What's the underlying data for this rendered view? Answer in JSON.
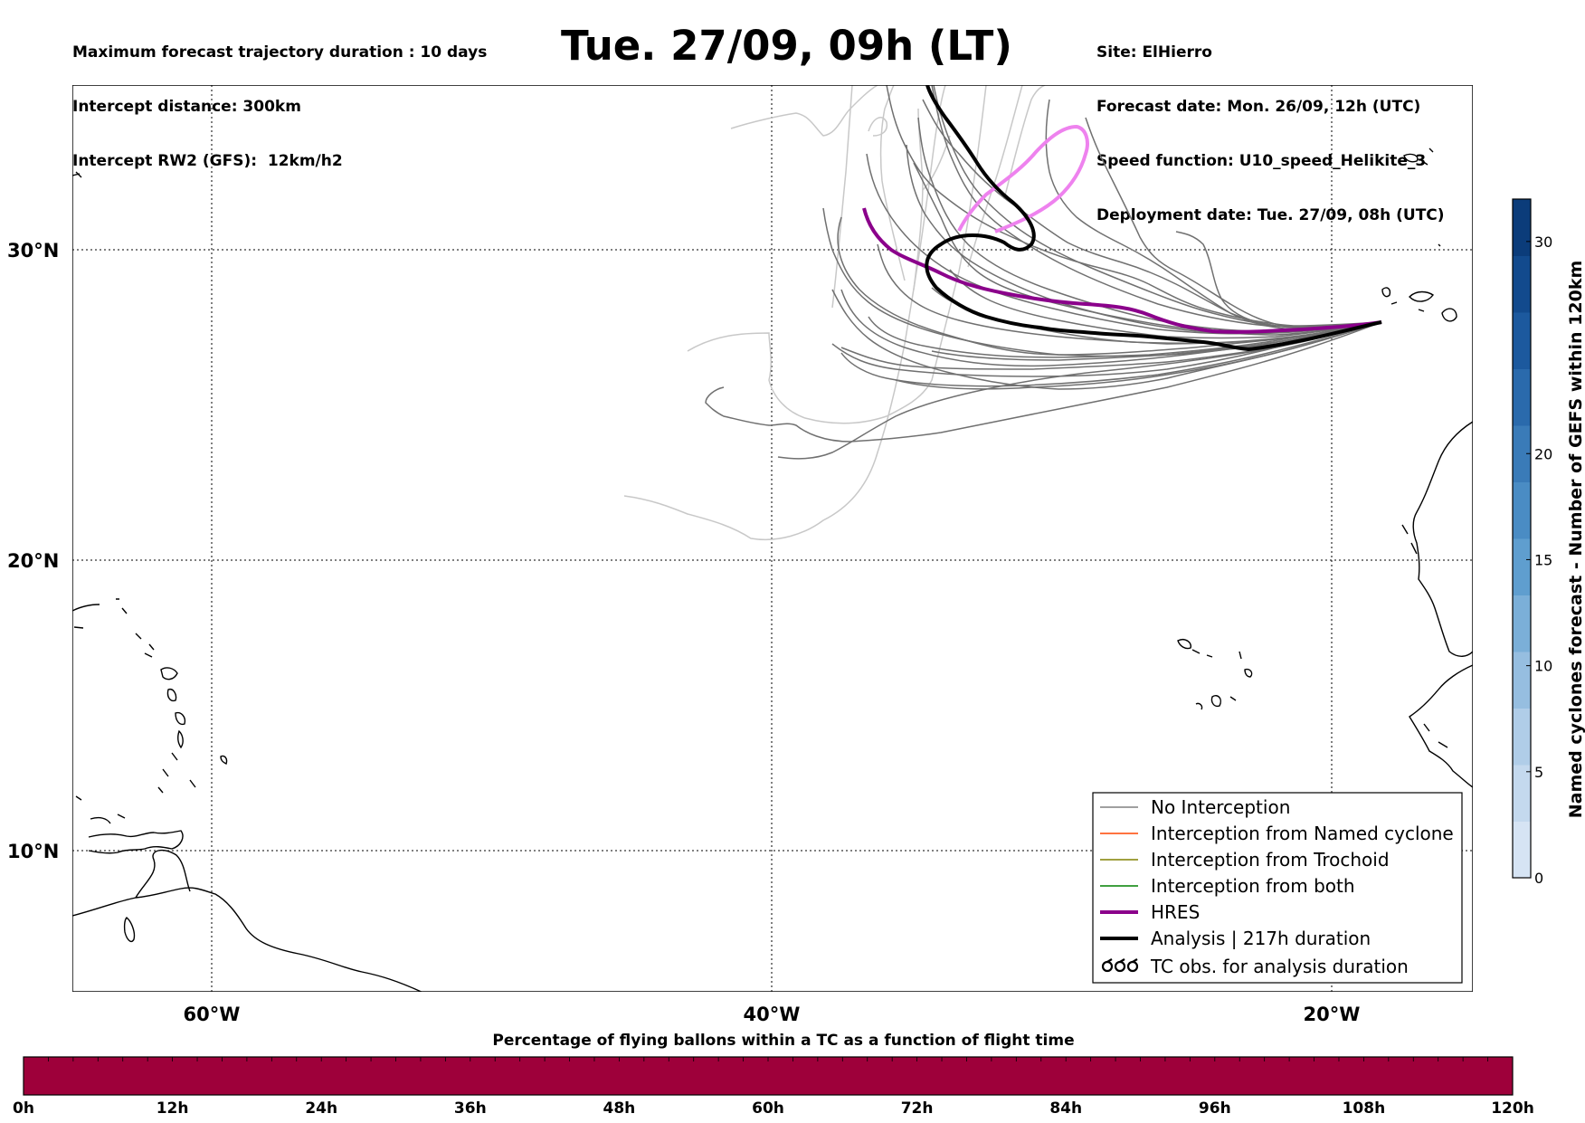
{
  "header": {
    "left_lines": [
      "Maximum forecast trajectory duration : 10 days",
      "Intercept distance: 300km",
      "Intercept RW2 (GFS):  12km/h2"
    ],
    "title": "Tue. 27/09, 09h (LT)",
    "right_lines": [
      "Site: ElHierro",
      "Forecast date: Mon. 26/09, 12h (UTC)",
      "Speed function: U10_speed_Helikite_3",
      "Deployment date: Tue. 27/09, 08h (UTC)"
    ]
  },
  "map": {
    "lon_range": [
      -65,
      -15
    ],
    "lat_range": [
      5.4,
      34.8
    ],
    "lat_labels": [
      "30°N",
      "20°N",
      "10°N"
    ],
    "lon_labels": [
      "60°W",
      "40°W",
      "20°W"
    ],
    "grid": "dotted"
  },
  "legend": {
    "placement": "bottom-right",
    "items": [
      {
        "label": "No Interception",
        "color": "#808080",
        "style": "thin"
      },
      {
        "label": "Interception from Named cyclone",
        "color": "#ff4500",
        "style": "thin"
      },
      {
        "label": "Interception from Trochoid",
        "color": "#808000",
        "style": "thin"
      },
      {
        "label": "Interception from both",
        "color": "#008000",
        "style": "thin"
      },
      {
        "label": "HRES",
        "color": "#8b008b",
        "style": "thick"
      },
      {
        "label": "Analysis | 217h duration",
        "color": "#000000",
        "style": "thick"
      },
      {
        "label": "TC obs. for analysis duration",
        "color": "#000000",
        "style": "symbol"
      }
    ]
  },
  "colorbar_right": {
    "title": "Named cyclones forecast - Number of GEFS within 120km",
    "ticks": [
      "0",
      "5",
      "10",
      "15",
      "20",
      "30"
    ],
    "colors": [
      "#d6e4f4",
      "#c4d9ee",
      "#b0cde8",
      "#96bee0",
      "#7bafd8",
      "#5f9ecf",
      "#4a8cc4",
      "#3a7bb8",
      "#2a6aac",
      "#1c599e",
      "#124a8d",
      "#0b3c7a"
    ]
  },
  "colorbar_bottom": {
    "title": "Percentage of flying ballons within a TC as a function of flight time",
    "ticks": [
      "0h",
      "12h",
      "24h",
      "36h",
      "48h",
      "60h",
      "72h",
      "84h",
      "96h",
      "108h",
      "120h"
    ],
    "fill_color": "#9e003a"
  }
}
